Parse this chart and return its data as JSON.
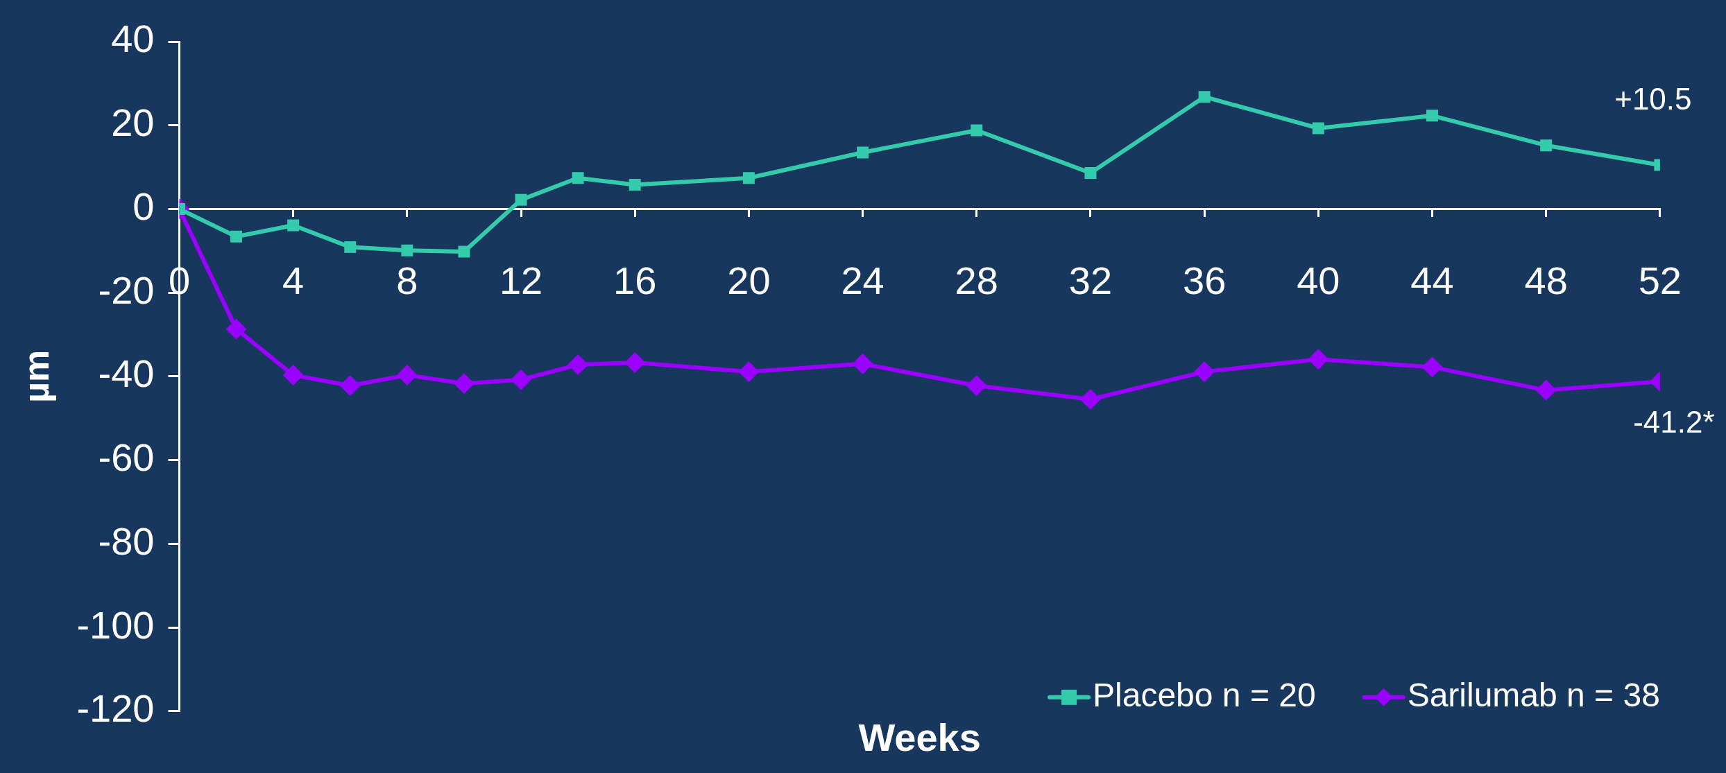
{
  "chart_data": {
    "type": "line",
    "xlabel": "Weeks",
    "ylabel": "µm",
    "x": [
      0,
      2,
      4,
      6,
      8,
      10,
      12,
      14,
      16,
      20,
      24,
      28,
      32,
      36,
      40,
      44,
      48,
      52
    ],
    "xlim": [
      0,
      52
    ],
    "xticks": [
      0,
      4,
      8,
      12,
      16,
      20,
      24,
      28,
      32,
      36,
      40,
      44,
      48,
      52
    ],
    "ylim": [
      -120,
      40
    ],
    "yticks": [
      -120,
      -100,
      -80,
      -60,
      -40,
      -20,
      0,
      20,
      40
    ],
    "grid": false,
    "legend": "bottom right",
    "line_style": "solid",
    "series": [
      {
        "name": "Placebo n = 20",
        "color": "#33cbac",
        "marker": "square",
        "values": [
          0,
          -6.6,
          -3.9,
          -9.1,
          -9.9,
          -10.2,
          2.2,
          7.4,
          5.8,
          7.4,
          13.5,
          18.8,
          8.6,
          26.8,
          19.3,
          22.3,
          15.2,
          10.5
        ]
      },
      {
        "name": "Sarilumab n = 38",
        "color": "#9900ff",
        "marker": "diamond",
        "values": [
          0,
          -28.7,
          -39.7,
          -42.2,
          -39.7,
          -41.7,
          -40.8,
          -37.2,
          -36.7,
          -38.9,
          -37,
          -42.2,
          -45.5,
          -38.9,
          -35.9,
          -37.8,
          -43.3,
          -41.2
        ]
      }
    ],
    "annotations": [
      {
        "text": "+10.5",
        "x": 52,
        "y": 10.5
      },
      {
        "text": "-41.2*",
        "x": 52,
        "y": -41.2
      }
    ]
  }
}
